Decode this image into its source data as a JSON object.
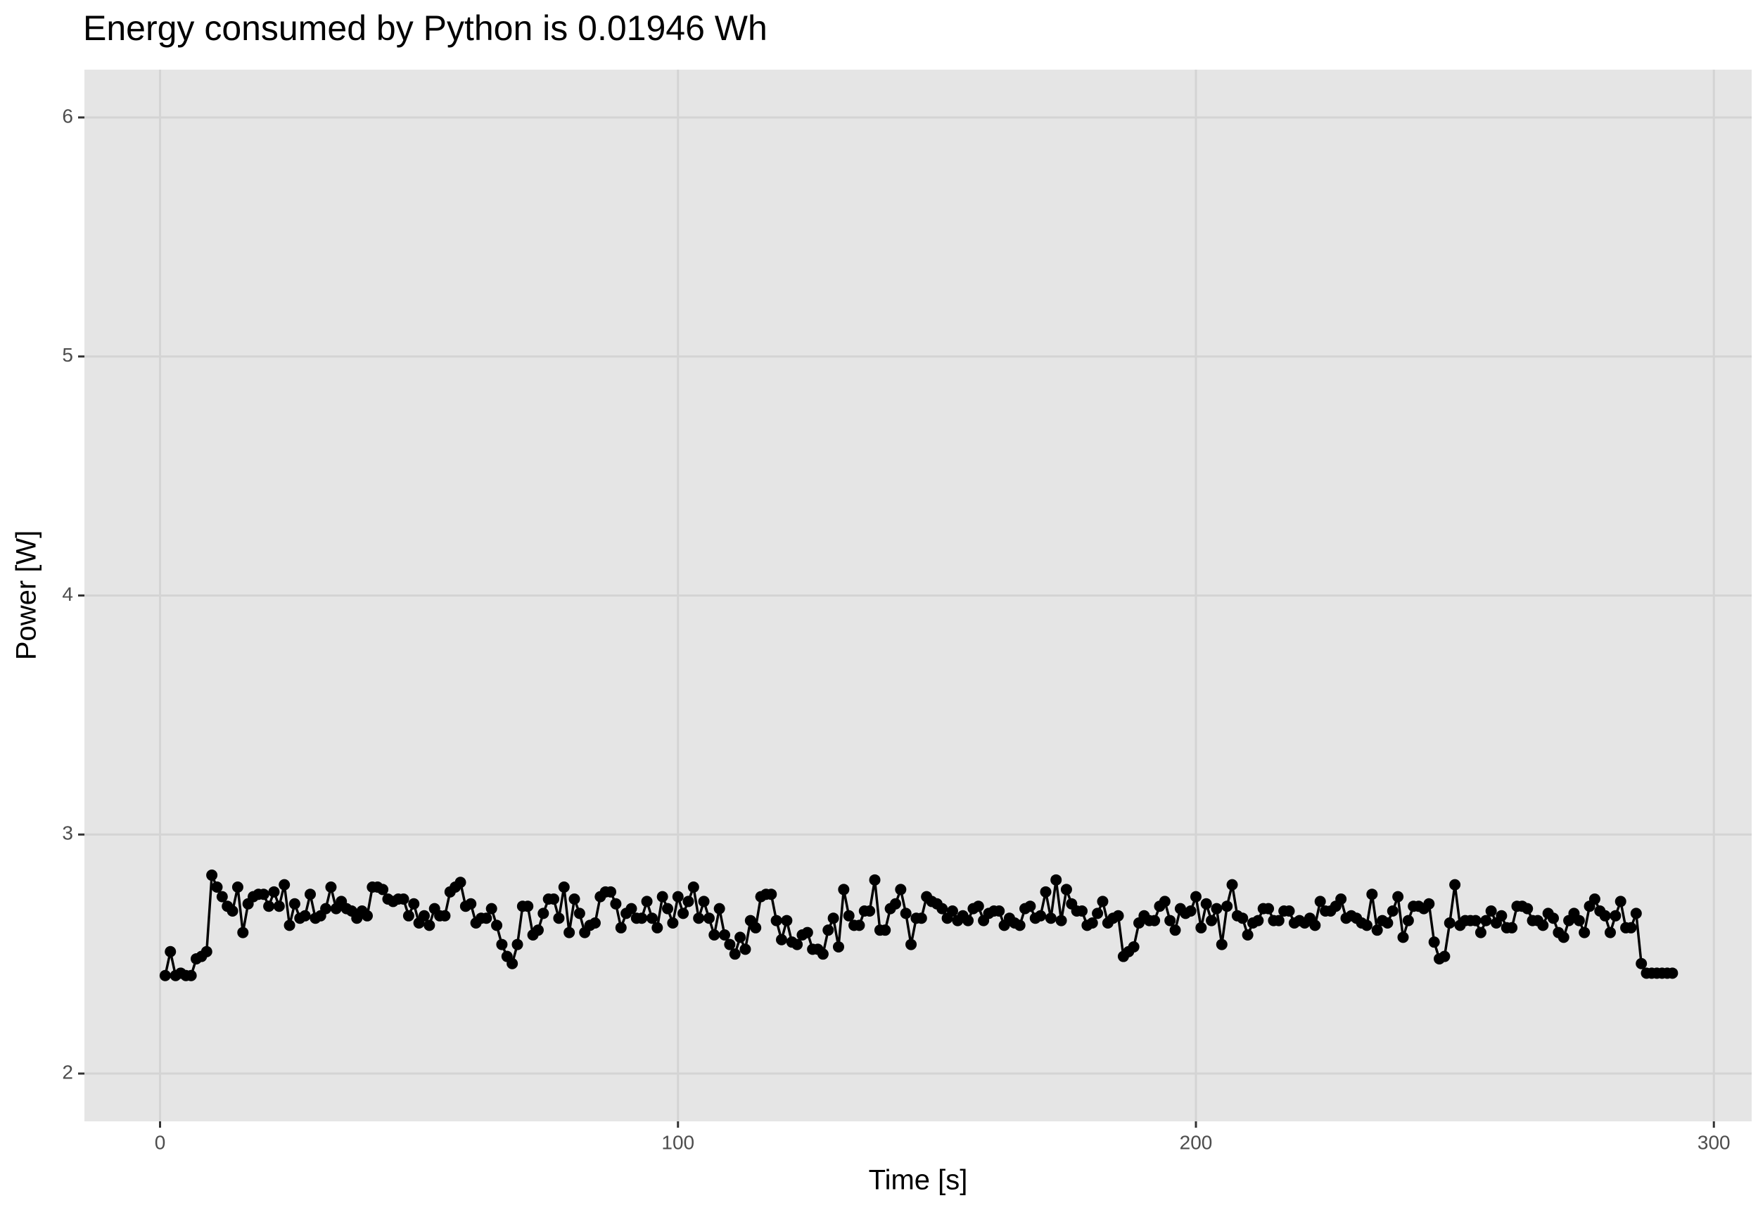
{
  "chart_data": {
    "type": "line",
    "title": "Energy consumed by Python is 0.01946 Wh",
    "xlabel": "Time [s]",
    "ylabel": "Power [W]",
    "xlim": [
      -14.6,
      307.3
    ],
    "xticks": [
      0,
      100,
      200,
      300
    ],
    "ylim": [
      1.8,
      6.2
    ],
    "yticks": [
      2,
      3,
      4,
      5,
      6
    ],
    "grid": true,
    "series": [
      {
        "color": "#000000",
        "x": [
          1,
          2,
          3,
          4,
          5,
          6,
          7,
          8,
          9,
          10,
          11,
          12,
          13,
          14,
          15,
          16,
          17,
          18,
          19,
          20,
          21,
          22,
          23,
          24,
          25,
          26,
          27,
          28,
          29,
          30,
          31,
          32,
          33,
          34,
          35,
          36,
          37,
          38,
          39,
          40,
          41,
          42,
          43,
          44,
          45,
          46,
          47,
          48,
          49,
          50,
          51,
          52,
          53,
          54,
          55,
          56,
          57,
          58,
          59,
          60,
          61,
          62,
          63,
          64,
          65,
          66,
          67,
          68,
          69,
          70,
          71,
          72,
          73,
          74,
          75,
          76,
          77,
          78,
          79,
          80,
          81,
          82,
          83,
          84,
          85,
          86,
          87,
          88,
          89,
          90,
          91,
          92,
          93,
          94,
          95,
          96,
          97,
          98,
          99,
          100,
          101,
          102,
          103,
          104,
          105,
          106,
          107,
          108,
          109,
          110,
          111,
          112,
          113,
          114,
          115,
          116,
          117,
          118,
          119,
          120,
          121,
          122,
          123,
          124,
          125,
          126,
          127,
          128,
          129,
          130,
          131,
          132,
          133,
          134,
          135,
          136,
          137,
          138,
          139,
          140,
          141,
          142,
          143,
          144,
          145,
          146,
          147,
          148,
          149,
          150,
          151,
          152,
          153,
          154,
          155,
          156,
          157,
          158,
          159,
          160,
          161,
          162,
          163,
          164,
          165,
          166,
          167,
          168,
          169,
          170,
          171,
          172,
          173,
          174,
          175,
          176,
          177,
          178,
          179,
          180,
          181,
          182,
          183,
          184,
          185,
          186,
          187,
          188,
          189,
          190,
          191,
          192,
          193,
          194,
          195,
          196,
          197,
          198,
          199,
          200,
          201,
          202,
          203,
          204,
          205,
          206,
          207,
          208,
          209,
          210,
          211,
          212,
          213,
          214,
          215,
          216,
          217,
          218,
          219,
          220,
          221,
          222,
          223,
          224,
          225,
          226,
          227,
          228,
          229,
          230,
          231,
          232,
          233,
          234,
          235,
          236,
          237,
          238,
          239,
          240,
          241,
          242,
          243,
          244,
          245,
          246,
          247,
          248,
          249,
          250,
          251,
          252,
          253,
          254,
          255,
          256,
          257,
          258,
          259,
          260,
          261,
          262,
          263,
          264,
          265,
          266,
          267,
          268,
          269,
          270,
          271,
          272,
          273,
          274,
          275,
          276,
          277,
          278,
          279,
          280,
          281,
          282,
          283,
          284,
          285,
          286,
          287,
          288,
          289,
          290,
          291,
          292
        ],
        "values": [
          2.41,
          2.51,
          2.41,
          2.42,
          2.41,
          2.41,
          2.48,
          2.49,
          2.51,
          2.83,
          2.78,
          2.74,
          2.7,
          2.68,
          2.78,
          2.59,
          2.71,
          2.74,
          2.75,
          2.75,
          2.7,
          2.76,
          2.7,
          2.79,
          2.62,
          2.71,
          2.65,
          2.66,
          2.75,
          2.65,
          2.66,
          2.69,
          2.78,
          2.69,
          2.72,
          2.69,
          2.68,
          2.65,
          2.68,
          2.66,
          2.78,
          2.78,
          2.77,
          2.73,
          2.72,
          2.73,
          2.73,
          2.66,
          2.71,
          2.63,
          2.66,
          2.62,
          2.69,
          2.66,
          2.66,
          2.76,
          2.78,
          2.8,
          2.7,
          2.71,
          2.63,
          2.65,
          2.65,
          2.69,
          2.62,
          2.54,
          2.49,
          2.46,
          2.54,
          2.7,
          2.7,
          2.58,
          2.6,
          2.67,
          2.73,
          2.73,
          2.65,
          2.78,
          2.59,
          2.73,
          2.67,
          2.59,
          2.62,
          2.63,
          2.74,
          2.76,
          2.76,
          2.71,
          2.61,
          2.67,
          2.69,
          2.65,
          2.65,
          2.72,
          2.65,
          2.61,
          2.74,
          2.69,
          2.63,
          2.74,
          2.67,
          2.72,
          2.78,
          2.65,
          2.72,
          2.65,
          2.58,
          2.69,
          2.58,
          2.54,
          2.5,
          2.57,
          2.52,
          2.64,
          2.61,
          2.74,
          2.75,
          2.75,
          2.64,
          2.56,
          2.64,
          2.55,
          2.54,
          2.58,
          2.59,
          2.52,
          2.52,
          2.5,
          2.6,
          2.65,
          2.53,
          2.77,
          2.66,
          2.62,
          2.62,
          2.68,
          2.68,
          2.81,
          2.6,
          2.6,
          2.69,
          2.71,
          2.77,
          2.67,
          2.54,
          2.65,
          2.65,
          2.74,
          2.72,
          2.71,
          2.69,
          2.65,
          2.68,
          2.64,
          2.66,
          2.64,
          2.69,
          2.7,
          2.64,
          2.67,
          2.68,
          2.68,
          2.62,
          2.65,
          2.63,
          2.62,
          2.69,
          2.7,
          2.65,
          2.66,
          2.76,
          2.65,
          2.81,
          2.64,
          2.77,
          2.71,
          2.68,
          2.68,
          2.62,
          2.63,
          2.67,
          2.72,
          2.63,
          2.65,
          2.66,
          2.49,
          2.51,
          2.53,
          2.63,
          2.66,
          2.64,
          2.64,
          2.7,
          2.72,
          2.64,
          2.6,
          2.69,
          2.67,
          2.68,
          2.74,
          2.61,
          2.71,
          2.64,
          2.69,
          2.54,
          2.7,
          2.79,
          2.66,
          2.65,
          2.58,
          2.63,
          2.64,
          2.69,
          2.69,
          2.64,
          2.64,
          2.68,
          2.68,
          2.63,
          2.64,
          2.63,
          2.65,
          2.62,
          2.72,
          2.68,
          2.68,
          2.7,
          2.73,
          2.65,
          2.66,
          2.65,
          2.63,
          2.62,
          2.75,
          2.6,
          2.64,
          2.63,
          2.68,
          2.74,
          2.57,
          2.64,
          2.7,
          2.7,
          2.69,
          2.71,
          2.55,
          2.48,
          2.49,
          2.63,
          2.79,
          2.62,
          2.64,
          2.64,
          2.64,
          2.59,
          2.64,
          2.68,
          2.63,
          2.66,
          2.61,
          2.61,
          2.7,
          2.7,
          2.69,
          2.64,
          2.64,
          2.62,
          2.67,
          2.65,
          2.59,
          2.57,
          2.64,
          2.67,
          2.64,
          2.59,
          2.7,
          2.73,
          2.68,
          2.66,
          2.59,
          2.66,
          2.72,
          2.61,
          2.61,
          2.67,
          2.46,
          2.42,
          2.42,
          2.42,
          2.42,
          2.42,
          2.42
        ]
      }
    ]
  }
}
